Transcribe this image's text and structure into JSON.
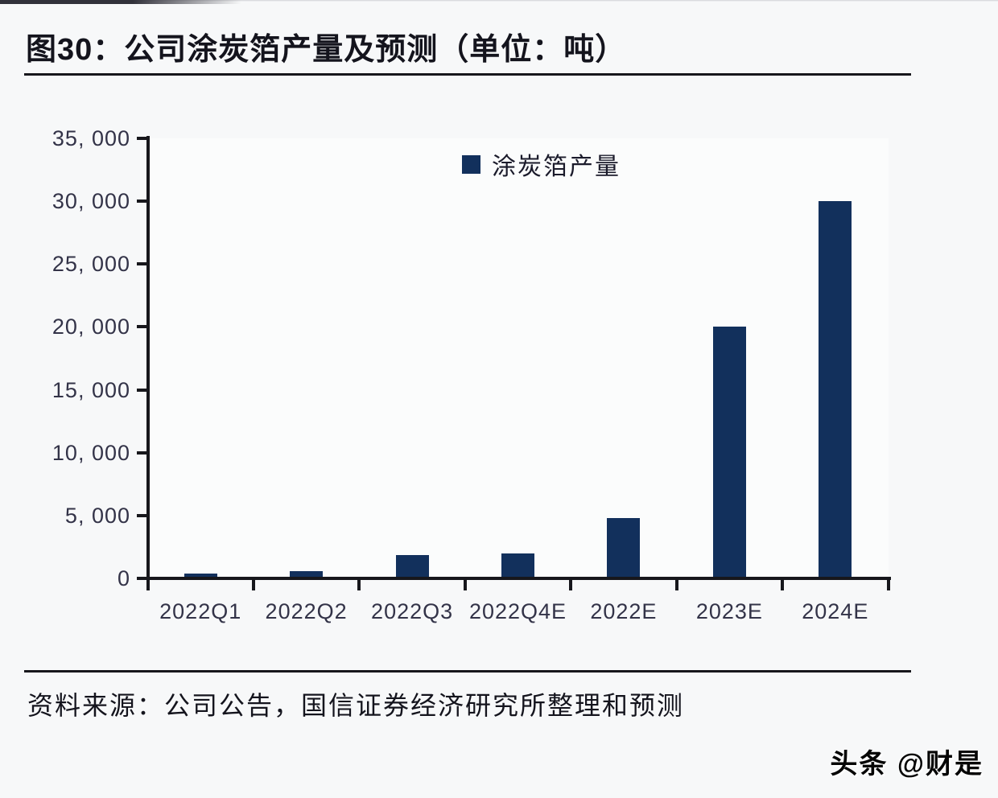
{
  "figure": {
    "title": "图30：公司涂炭箔产量及预测（单位：吨）"
  },
  "chart_data": {
    "type": "bar",
    "title": "公司涂炭箔产量及预测",
    "unit": "吨",
    "legend": "涂炭箔产量",
    "legend_position": "top-center",
    "grid": false,
    "categories": [
      "2022Q1",
      "2022Q2",
      "2022Q3",
      "2022Q4E",
      "2022E",
      "2023E",
      "2024E"
    ],
    "values": [
      400,
      550,
      1850,
      2000,
      4800,
      20000,
      30000
    ],
    "ylim": [
      0,
      35000
    ],
    "y_ticks": [
      {
        "value": 0,
        "label": "0"
      },
      {
        "value": 5000,
        "label": "5, 000"
      },
      {
        "value": 10000,
        "label": "10, 000"
      },
      {
        "value": 15000,
        "label": "15, 000"
      },
      {
        "value": 20000,
        "label": "20, 000"
      },
      {
        "value": 25000,
        "label": "25, 000"
      },
      {
        "value": 30000,
        "label": "30, 000"
      },
      {
        "value": 35000,
        "label": "35, 000"
      }
    ],
    "xlabel": "",
    "ylabel": "",
    "bar_color": "#12305c",
    "axis_color": "#17171c"
  },
  "source": {
    "text": "资料来源：公司公告，国信证券经济研究所整理和预测"
  },
  "watermark": {
    "text": "头条 @财是"
  },
  "colors": {
    "bar": "#12305c",
    "axis": "#17171c",
    "title_text": "#14141d",
    "tick_text": "#333348",
    "background": "#f7f8f9"
  }
}
